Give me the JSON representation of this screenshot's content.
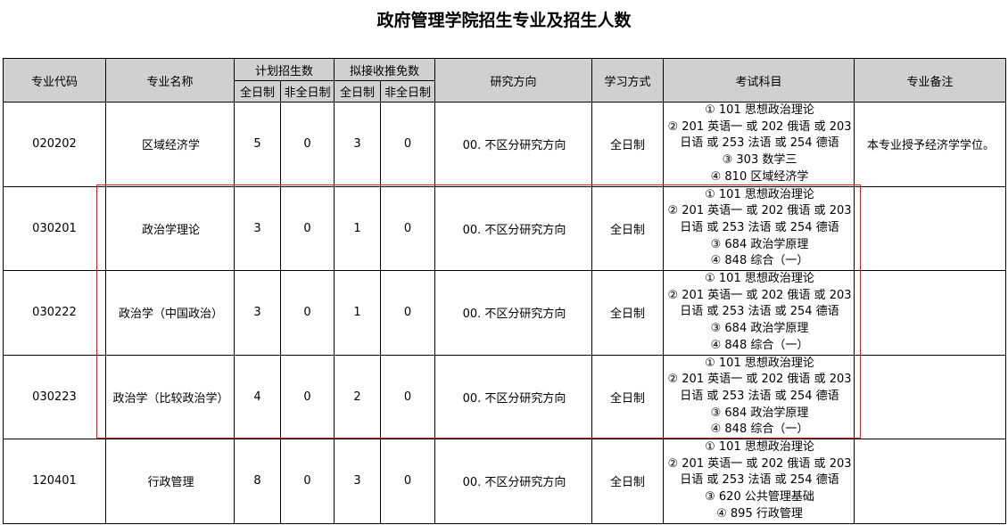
{
  "title": "政府管理学院招生专业及招生人数",
  "headers": {
    "code": "专业代码",
    "name": "专业名称",
    "plan": "计划招生数",
    "exempt": "拟接收推免数",
    "full": "全日制",
    "part": "非全日制",
    "direction": "研究方向",
    "mode": "学习方式",
    "exam": "考试科目",
    "note": "专业备注"
  },
  "rows": [
    {
      "code": "020202",
      "name": "区域经济学",
      "plan_full": "5",
      "plan_part": "0",
      "ex_full": "3",
      "ex_part": "0",
      "direction": "00. 不区分研究方向",
      "mode": "全日制",
      "exam": [
        "① 101 思想政治理论",
        "② 201 英语一 或 202 俄语 或 203",
        "日语 或 253 法语 或 254 德语",
        "③ 303 数学三",
        "④ 810 区域经济学"
      ],
      "note": "本专业授予经济学学位。"
    },
    {
      "code": "030201",
      "name": "政治学理论",
      "plan_full": "3",
      "plan_part": "0",
      "ex_full": "1",
      "ex_part": "0",
      "direction": "00. 不区分研究方向",
      "mode": "全日制",
      "exam": [
        "① 101 思想政治理论",
        "② 201 英语一 或 202 俄语 或 203",
        "日语 或 253 法语 或 254 德语",
        "③ 684 政治学原理",
        "④ 848 综合（一）"
      ],
      "note": ""
    },
    {
      "code": "030222",
      "name": "政治学（中国政治）",
      "plan_full": "3",
      "plan_part": "0",
      "ex_full": "1",
      "ex_part": "0",
      "direction": "00. 不区分研究方向",
      "mode": "全日制",
      "exam": [
        "① 101 思想政治理论",
        "② 201 英语一 或 202 俄语 或 203",
        "日语 或 253 法语 或 254 德语",
        "③ 684 政治学原理",
        "④ 848 综合（一）"
      ],
      "note": ""
    },
    {
      "code": "030223",
      "name": "政治学（比较政治学）",
      "plan_full": "4",
      "plan_part": "0",
      "ex_full": "2",
      "ex_part": "0",
      "direction": "00. 不区分研究方向",
      "mode": "全日制",
      "exam": [
        "① 101 思想政治理论",
        "② 201 英语一 或 202 俄语 或 203",
        "日语 或 253 法语 或 254 德语",
        "③ 684 政治学原理",
        "④ 848 综合（一）"
      ],
      "note": ""
    },
    {
      "code": "120401",
      "name": "行政管理",
      "plan_full": "8",
      "plan_part": "0",
      "ex_full": "3",
      "ex_part": "0",
      "direction": "00. 不区分研究方向",
      "mode": "全日制",
      "exam": [
        "① 101 思想政治理论",
        "② 201 英语一 或 202 俄语 或 203",
        "日语 或 253 法语 或 254 德语",
        "③ 620 公共管理基础",
        "④ 895 行政管理"
      ],
      "note": ""
    }
  ],
  "highlight_color": "#e02020"
}
